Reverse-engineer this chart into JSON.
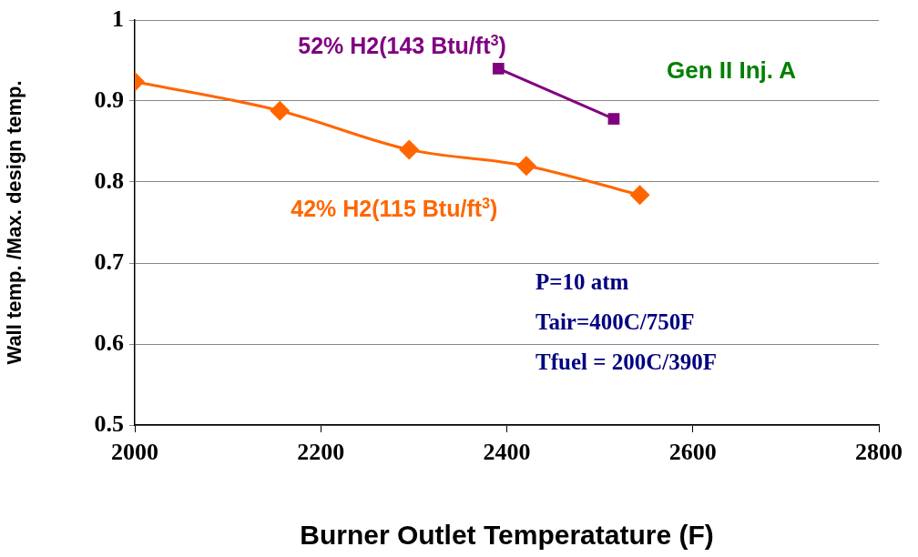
{
  "chart_data": {
    "type": "line",
    "xlabel": "Burner Outlet Temperatature (F)",
    "ylabel": "Wall temp. /Max. design temp.",
    "xlim": [
      2000,
      2800
    ],
    "xticks": [
      2000,
      2200,
      2400,
      2600,
      2800
    ],
    "ylim": [
      0.5,
      1
    ],
    "yticks": [
      0.5,
      0.6,
      0.7,
      0.8,
      0.9,
      1
    ],
    "grid": "y",
    "legend": false,
    "series": [
      {
        "name": "42% H2(115 Btu/ft$^{3}$)",
        "color": "#ff6600",
        "marker": "diamond",
        "x": [
          2000,
          2156,
          2295,
          2421,
          2543
        ],
        "values": [
          0.924,
          0.888,
          0.84,
          0.82,
          0.784
        ]
      },
      {
        "name": "52% H2(143 Btu/ft$^{3}$)",
        "color": "#800080",
        "marker": "square",
        "x": [
          2391,
          2515
        ],
        "values": [
          0.94,
          0.878
        ]
      }
    ],
    "annotations": [
      "Gen II Inj. A",
      "P=10 atm",
      "Tair=400C/750F",
      "Tfuel = 200C/390F"
    ]
  }
}
